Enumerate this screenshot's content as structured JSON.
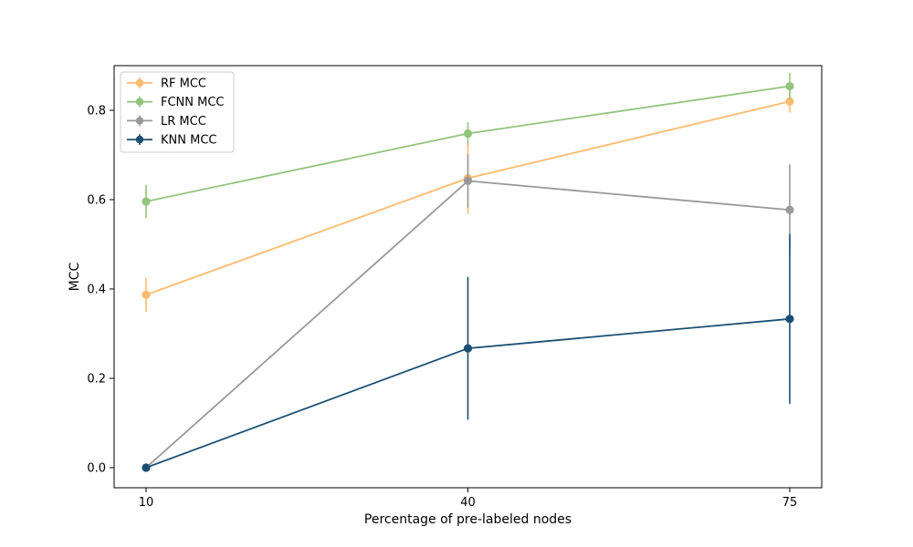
{
  "chart_data": {
    "type": "line",
    "title": "",
    "xlabel": "Percentage of pre-labeled nodes",
    "ylabel": "MCC",
    "x": [
      10,
      40,
      75
    ],
    "x_tick_labels": [
      "10",
      "40",
      "75"
    ],
    "y_ticks": [
      0.0,
      0.2,
      0.4,
      0.6,
      0.8
    ],
    "y_tick_labels": [
      "0.0",
      "0.2",
      "0.4",
      "0.6",
      "0.8"
    ],
    "ylim": [
      -0.045,
      0.9
    ],
    "grid": false,
    "legend_position": "top-left",
    "series": [
      {
        "name": "RF MCC",
        "color": "#fdbb6e",
        "values": [
          0.387,
          0.648,
          0.82
        ],
        "errors": [
          0.038,
          0.08,
          0.025
        ]
      },
      {
        "name": "FCNN MCC",
        "color": "#93c47d",
        "values": [
          0.596,
          0.748,
          0.854
        ],
        "errors": [
          0.037,
          0.025,
          0.03
        ]
      },
      {
        "name": "LR MCC",
        "color": "#999999",
        "values": [
          0.0,
          0.642,
          0.577
        ],
        "errors": [
          0.0,
          0.06,
          0.102
        ]
      },
      {
        "name": "KNN MCC",
        "color": "#1b4f72",
        "values": [
          0.0,
          0.267,
          0.333
        ],
        "errors": [
          0.0,
          0.16,
          0.19
        ]
      }
    ]
  }
}
